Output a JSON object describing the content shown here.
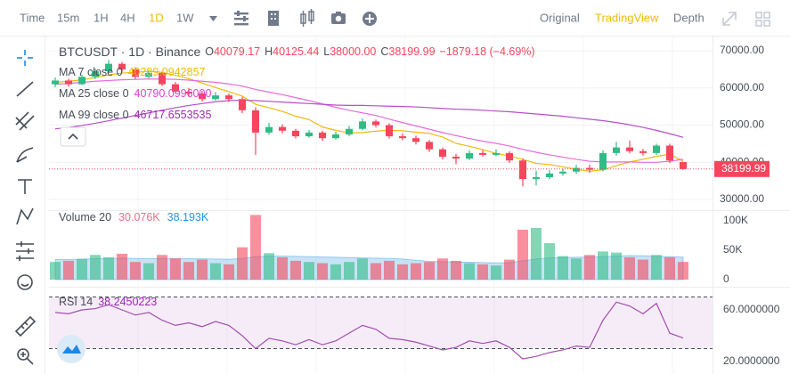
{
  "toolbar": {
    "intervals": [
      "Time",
      "15m",
      "1H",
      "4H",
      "1D",
      "1W"
    ],
    "views": [
      "Original",
      "TradingView",
      "Depth"
    ]
  },
  "legend": {
    "symbol": "BTCUSDT · 1D · Binance",
    "ohlc_labels": [
      "O",
      "H",
      "L",
      "C"
    ],
    "ohlc_values": [
      "40079.17",
      "40125.44",
      "38000.00",
      "38199.99"
    ],
    "change": "−1879.18 (−4.69%)",
    "ma": [
      {
        "label": "MA 7 close 0",
        "value": "40289.0942857"
      },
      {
        "label": "MA 25 close 0",
        "value": "40790.0996000"
      },
      {
        "label": "MA 99 close 0",
        "value": "46717.6553535"
      }
    ],
    "volume": {
      "label": "Volume 20",
      "value": "30.076K",
      "ma_value": "38.193K"
    },
    "rsi": {
      "label": "RSI 14",
      "value": "38.2450223"
    }
  },
  "chart_data": {
    "type": "candlestick",
    "up_color": "#2ebd85",
    "down_color": "#f6465d",
    "ylim": [
      28000,
      73000
    ],
    "yticks": [
      {
        "value": 30000,
        "label": "30000.00"
      },
      {
        "value": 40000,
        "label": "40000.00"
      },
      {
        "value": 50000,
        "label": "50000.00"
      },
      {
        "value": 60000,
        "label": "60000.00"
      },
      {
        "value": 70000,
        "label": "70000.00"
      }
    ],
    "grid": true,
    "ohlc": [
      [
        61000,
        62800,
        60200,
        62000
      ],
      [
        62000,
        62500,
        60300,
        61000
      ],
      [
        61000,
        63600,
        60800,
        63000
      ],
      [
        63000,
        65200,
        62400,
        64500
      ],
      [
        64500,
        67500,
        64000,
        66500
      ],
      [
        66500,
        67000,
        64200,
        65000
      ],
      [
        65000,
        65600,
        62400,
        63000
      ],
      [
        63000,
        64800,
        62600,
        64000
      ],
      [
        64000,
        64300,
        60500,
        61000
      ],
      [
        61000,
        61600,
        58400,
        59000
      ],
      [
        59000,
        60000,
        57800,
        58500
      ],
      [
        58500,
        59200,
        56300,
        57000
      ],
      [
        57000,
        58900,
        56600,
        58000
      ],
      [
        58000,
        58500,
        56200,
        57000
      ],
      [
        57000,
        57600,
        53200,
        54000
      ],
      [
        54000,
        54800,
        42000,
        48000
      ],
      [
        48000,
        50600,
        47400,
        49500
      ],
      [
        49500,
        50200,
        47800,
        48500
      ],
      [
        48500,
        49000,
        46400,
        47000
      ],
      [
        47000,
        48700,
        46600,
        48000
      ],
      [
        48000,
        48500,
        45800,
        46500
      ],
      [
        46500,
        48200,
        46100,
        47500
      ],
      [
        47500,
        49800,
        47000,
        49000
      ],
      [
        49000,
        51800,
        48600,
        51000
      ],
      [
        51000,
        51500,
        49400,
        50000
      ],
      [
        50000,
        50500,
        46400,
        47000
      ],
      [
        47000,
        47800,
        45900,
        46500
      ],
      [
        46500,
        47200,
        44800,
        45500
      ],
      [
        45500,
        46000,
        42800,
        43500
      ],
      [
        43500,
        44000,
        40800,
        41500
      ],
      [
        41500,
        42300,
        39500,
        41000
      ],
      [
        41000,
        43200,
        40600,
        42500
      ],
      [
        42500,
        43300,
        41500,
        42000
      ],
      [
        42000,
        43500,
        41600,
        42500
      ],
      [
        42500,
        43000,
        39800,
        40500
      ],
      [
        40500,
        41000,
        33500,
        35500
      ],
      [
        35500,
        37800,
        33800,
        36000
      ],
      [
        36000,
        37900,
        35500,
        37000
      ],
      [
        37000,
        38300,
        36400,
        37500
      ],
      [
        37500,
        39300,
        36900,
        38500
      ],
      [
        38500,
        39400,
        37200,
        38000
      ],
      [
        38000,
        43200,
        37600,
        42500
      ],
      [
        42500,
        45500,
        41800,
        44000
      ],
      [
        44000,
        45800,
        42400,
        43000
      ],
      [
        43000,
        43600,
        41800,
        42500
      ],
      [
        42500,
        45000,
        42000,
        44500
      ],
      [
        44500,
        45000,
        39800,
        40500
      ],
      [
        40079.17,
        40125.44,
        38000,
        38199.99
      ]
    ],
    "series": [
      {
        "name": "MA 7",
        "color": "#f0b90b",
        "values": [
          61500,
          61800,
          62200,
          62800,
          63500,
          64000,
          64200,
          64500,
          64200,
          63400,
          62500,
          61300,
          60100,
          59000,
          57800,
          55600,
          54700,
          53700,
          52400,
          51500,
          49500,
          48600,
          47900,
          48000,
          48400,
          48600,
          48500,
          48100,
          47800,
          46800,
          45100,
          44300,
          43400,
          42400,
          41700,
          40800,
          39700,
          39400,
          38800,
          38100,
          37600,
          38000,
          39100,
          40100,
          40800,
          41600,
          42200,
          40289.0942857
        ]
      },
      {
        "name": "MA 25",
        "color": "#e66bdc",
        "values": [
          61000,
          61200,
          61500,
          61800,
          62000,
          62200,
          62300,
          62400,
          62400,
          62300,
          62100,
          61800,
          61500,
          61100,
          60500,
          59600,
          58900,
          58200,
          57400,
          56600,
          55700,
          54800,
          54000,
          53300,
          52600,
          51600,
          50700,
          49800,
          48900,
          48000,
          47200,
          46400,
          45700,
          45100,
          44400,
          43500,
          42700,
          42000,
          41400,
          40800,
          40300,
          40100,
          40100,
          40100,
          40000,
          40000,
          40300,
          40790.0996
        ]
      },
      {
        "name": "MA 99",
        "color": "#b64fc8",
        "values": [
          49000,
          49400,
          49900,
          50500,
          51200,
          51900,
          52600,
          53300,
          54000,
          54700,
          55300,
          55800,
          56300,
          56600,
          56700,
          56600,
          56400,
          56200,
          56000,
          55800,
          55600,
          55400,
          55300,
          55300,
          55200,
          55100,
          55000,
          54900,
          54700,
          54500,
          54300,
          54200,
          54000,
          53800,
          53600,
          53300,
          53000,
          52700,
          52400,
          52000,
          51600,
          51200,
          50700,
          50100,
          49400,
          48600,
          47700,
          46717.6553535
        ]
      }
    ],
    "volume": {
      "values": [
        30000,
        32000,
        35000,
        42000,
        38000,
        44000,
        30000,
        28000,
        42000,
        36000,
        30000,
        34000,
        28000,
        26000,
        55000,
        110000,
        45000,
        38000,
        32000,
        30000,
        28000,
        26000,
        30000,
        36000,
        28000,
        32000,
        26000,
        28000,
        30000,
        36000,
        32000,
        28000,
        26000,
        24000,
        34000,
        85000,
        88000,
        62000,
        40000,
        36000,
        42000,
        48000,
        46000,
        38000,
        34000,
        42000,
        38000,
        30076
      ],
      "ma": [
        34000,
        34000,
        35000,
        35500,
        36000,
        36500,
        36000,
        35500,
        36000,
        36000,
        35500,
        35500,
        35000,
        34500,
        36000,
        39000,
        40000,
        40000,
        39500,
        39000,
        38500,
        38000,
        37500,
        37000,
        36500,
        36000,
        35000,
        33000,
        31000,
        30500,
        30000,
        29500,
        29000,
        28500,
        29000,
        32000,
        35000,
        37000,
        37500,
        38000,
        38500,
        39000,
        40000,
        41000,
        40500,
        39500,
        39000,
        38193
      ],
      "ma_color": "#4aa3df",
      "ylim": [
        0,
        120000
      ],
      "yticks": [
        0,
        {
          "value": 50000,
          "label": "50K"
        },
        {
          "value": 100000,
          "label": "100K"
        }
      ]
    },
    "rsi": {
      "values": [
        58,
        57,
        60,
        61,
        64,
        60,
        56,
        58,
        52,
        48,
        50,
        47,
        51,
        48,
        40,
        30,
        38,
        36,
        33,
        37,
        33,
        36,
        42,
        48,
        45,
        38,
        37,
        35,
        32,
        29,
        31,
        36,
        34,
        36,
        31,
        22,
        24,
        27,
        29,
        32,
        31,
        52,
        66,
        63,
        57,
        65,
        42,
        38.2450223
      ],
      "color": "#a24fad",
      "bands": [
        70,
        30
      ],
      "ylim": [
        14,
        74
      ],
      "yticks": [
        {
          "value": 20,
          "label": "20.0000000"
        },
        {
          "value": 60,
          "label": "60.0000000"
        }
      ]
    }
  }
}
